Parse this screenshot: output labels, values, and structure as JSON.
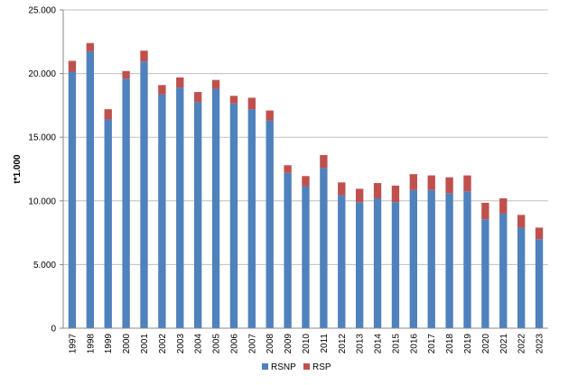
{
  "chart_data": {
    "type": "bar",
    "stacked": true,
    "categories": [
      "1997",
      "1998",
      "1999",
      "2000",
      "2001",
      "2002",
      "2003",
      "2004",
      "2005",
      "2006",
      "2007",
      "2008",
      "2009",
      "2010",
      "2011",
      "2012",
      "2013",
      "2014",
      "2015",
      "2016",
      "2017",
      "2018",
      "2019",
      "2020",
      "2021",
      "2022",
      "2023"
    ],
    "series": [
      {
        "name": "RSNP",
        "color": "#4f81bd",
        "values": [
          20150,
          21750,
          16400,
          19600,
          20950,
          18350,
          18900,
          17750,
          18800,
          17650,
          17200,
          16300,
          12200,
          11150,
          12600,
          10450,
          9900,
          10200,
          9900,
          10850,
          10850,
          10600,
          10750,
          8550,
          9000,
          7900,
          7000
        ]
      },
      {
        "name": "RSP",
        "color": "#c0504d",
        "values": [
          850,
          650,
          800,
          600,
          850,
          750,
          800,
          800,
          700,
          600,
          900,
          800,
          600,
          800,
          1000,
          1000,
          1050,
          1200,
          1300,
          1250,
          1150,
          1250,
          1250,
          1300,
          1200,
          1000,
          900
        ]
      }
    ],
    "ylabel": "t*1.000",
    "xlabel": "",
    "ylim": [
      0,
      25000
    ],
    "yticks": [
      "0",
      "5.000",
      "10.000",
      "15.000",
      "20.000",
      "25.000"
    ],
    "ytick_values": [
      0,
      5000,
      10000,
      15000,
      20000,
      25000
    ],
    "grid": true,
    "grid_color": "#bfbfbf",
    "legend_position": "bottom"
  }
}
